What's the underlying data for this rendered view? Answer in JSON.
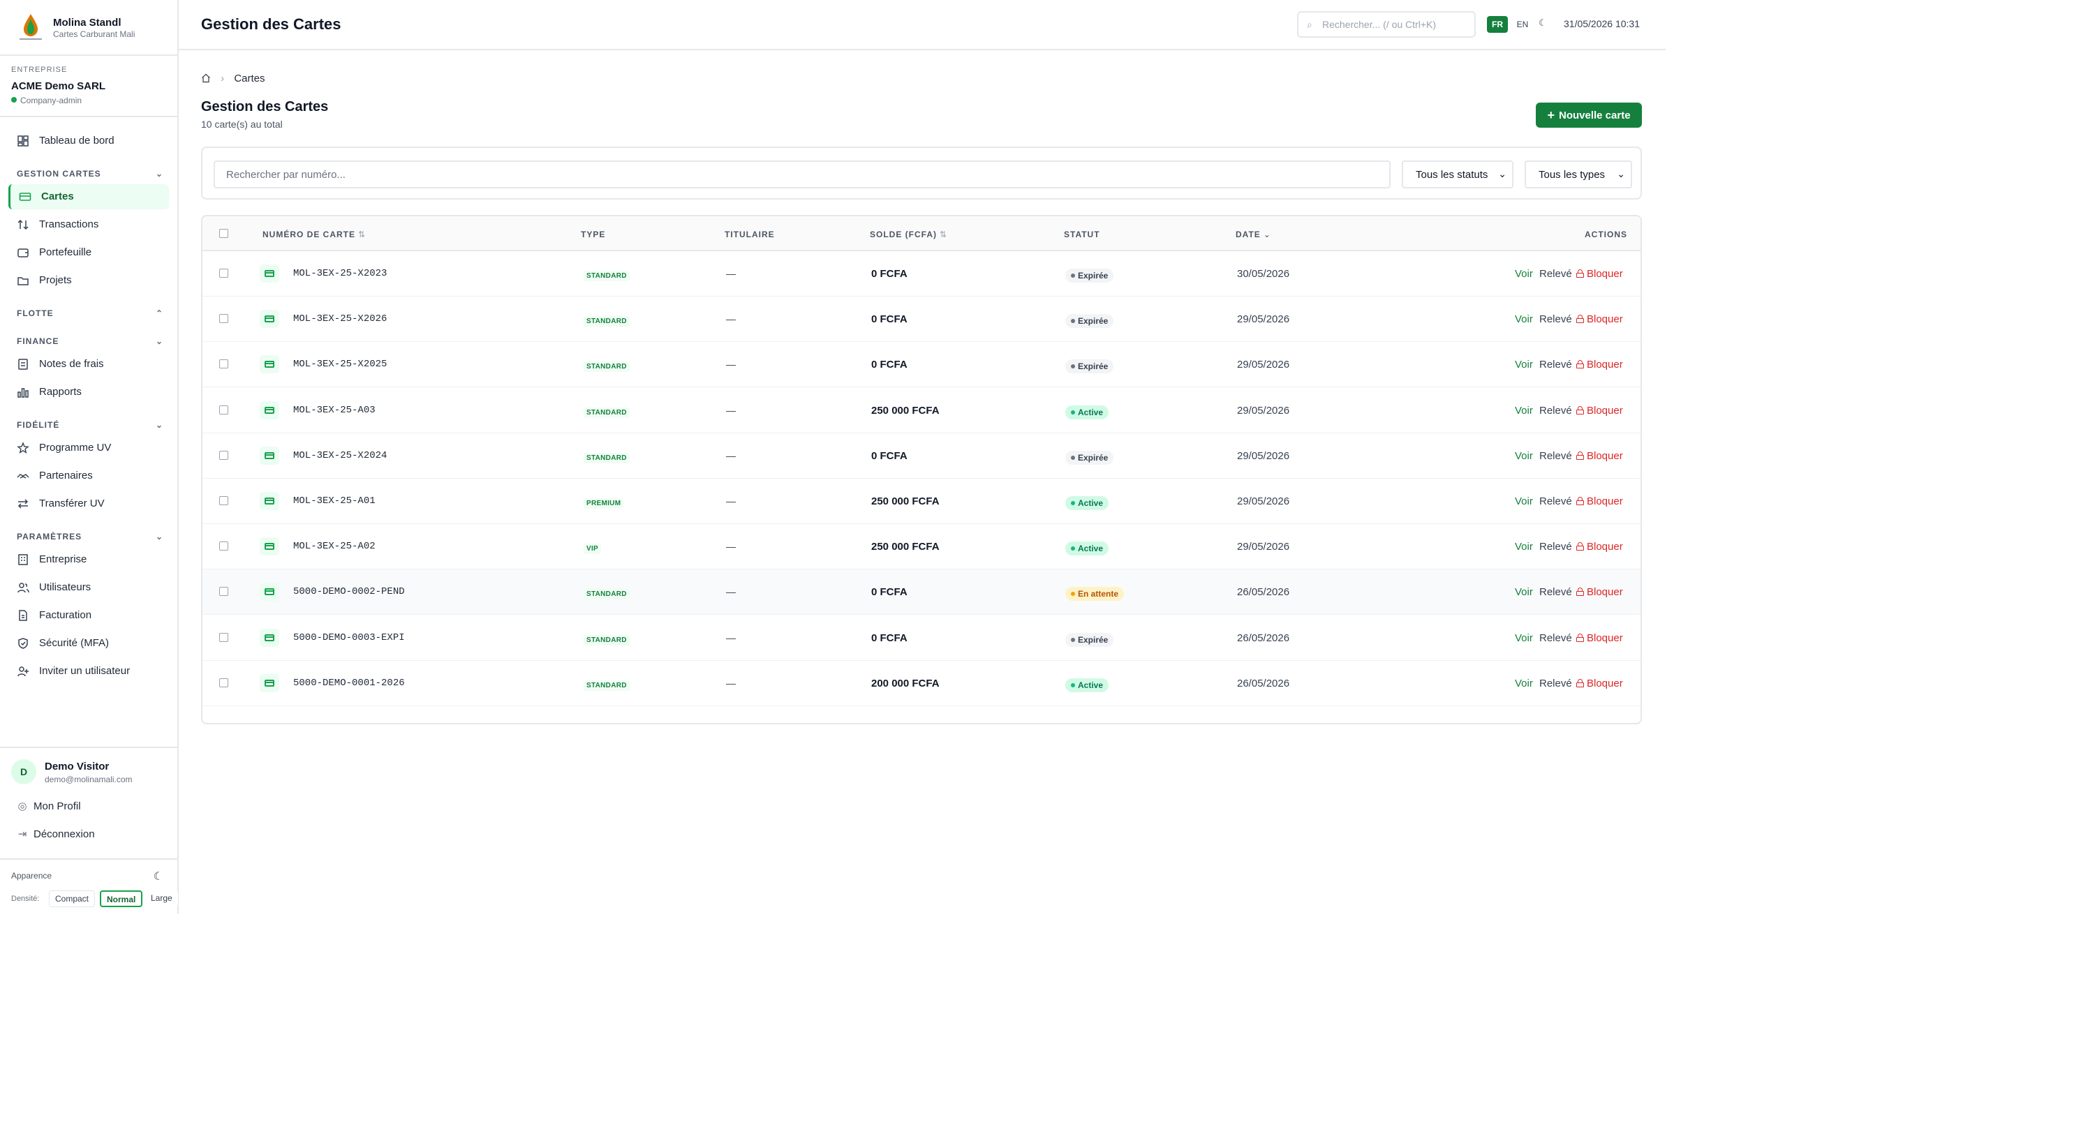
{
  "brand": {
    "name": "Molina Standl",
    "subtitle": "Cartes Carburant Mali"
  },
  "company": {
    "label": "Entreprise",
    "name": "ACME Demo SARL",
    "role": "Company-admin"
  },
  "nav": {
    "dashboard": "Tableau de bord",
    "sections": {
      "cards": "Gestion cartes",
      "fleet": "Flotte",
      "finance": "Finance",
      "loyalty": "Fidélité",
      "settings": "Paramètres"
    },
    "items": {
      "cartes": "Cartes",
      "transactions": "Transactions",
      "portefeuille": "Portefeuille",
      "projets": "Projets",
      "notes": "Notes de frais",
      "rapports": "Rapports",
      "programme": "Programme UV",
      "partenaires": "Partenaires",
      "transferer": "Transférer UV",
      "entreprise": "Entreprise",
      "utilisateurs": "Utilisateurs",
      "facturation": "Facturation",
      "securite": "Sécurité (MFA)",
      "inviter": "Inviter un utilisateur"
    }
  },
  "user": {
    "initial": "D",
    "name": "Demo Visitor",
    "email": "demo@molinamali.com",
    "profile": "Mon Profil",
    "logout": "Déconnexion"
  },
  "appearance": {
    "label": "Apparence",
    "density_label": "Densité:",
    "compact": "Compact",
    "normal": "Normal",
    "large": "Large"
  },
  "header": {
    "title": "Gestion des Cartes",
    "search_placeholder": "Rechercher... (/ ou Ctrl+K)",
    "lang_fr": "FR",
    "lang_en": "EN",
    "theme": "☾",
    "datetime": "31/05/2026 10:31"
  },
  "breadcrumb": {
    "current": "Cartes"
  },
  "main": {
    "title": "Gestion des Cartes",
    "count": "10 carte(s) au total",
    "new_button": "Nouvelle carte"
  },
  "filters": {
    "search_placeholder": "Rechercher par numéro...",
    "status_value": "Tous les statuts",
    "type_value": "Tous les types"
  },
  "table": {
    "columns": {
      "number": "Numéro de carte",
      "type": "Type",
      "holder": "Titulaire",
      "balance": "Solde (FCFA)",
      "status": "Statut",
      "date": "Date",
      "actions": "Actions"
    },
    "action_labels": {
      "view": "Voir",
      "statement": "Relevé",
      "block": "Bloquer"
    },
    "rows": [
      {
        "number": "MOL-3EX-25-X2023",
        "type": "STANDARD",
        "holder": "—",
        "balance": "0 FCFA",
        "status": "Expirée",
        "status_kind": "expired",
        "date": "30/05/2026"
      },
      {
        "number": "MOL-3EX-25-X2026",
        "type": "STANDARD",
        "holder": "—",
        "balance": "0 FCFA",
        "status": "Expirée",
        "status_kind": "expired",
        "date": "29/05/2026"
      },
      {
        "number": "MOL-3EX-25-X2025",
        "type": "STANDARD",
        "holder": "—",
        "balance": "0 FCFA",
        "status": "Expirée",
        "status_kind": "expired",
        "date": "29/05/2026"
      },
      {
        "number": "MOL-3EX-25-A03",
        "type": "STANDARD",
        "holder": "—",
        "balance": "250 000 FCFA",
        "status": "Active",
        "status_kind": "active",
        "date": "29/05/2026"
      },
      {
        "number": "MOL-3EX-25-X2024",
        "type": "STANDARD",
        "holder": "—",
        "balance": "0 FCFA",
        "status": "Expirée",
        "status_kind": "expired",
        "date": "29/05/2026"
      },
      {
        "number": "MOL-3EX-25-A01",
        "type": "PREMIUM",
        "holder": "—",
        "balance": "250 000 FCFA",
        "status": "Active",
        "status_kind": "active",
        "date": "29/05/2026"
      },
      {
        "number": "MOL-3EX-25-A02",
        "type": "VIP",
        "holder": "—",
        "balance": "250 000 FCFA",
        "status": "Active",
        "status_kind": "active",
        "date": "29/05/2026"
      },
      {
        "number": "5000-DEMO-0002-PEND",
        "type": "STANDARD",
        "holder": "—",
        "balance": "0 FCFA",
        "status": "En attente",
        "status_kind": "pending",
        "date": "26/05/2026"
      },
      {
        "number": "5000-DEMO-0003-EXPI",
        "type": "STANDARD",
        "holder": "—",
        "balance": "0 FCFA",
        "status": "Expirée",
        "status_kind": "expired",
        "date": "26/05/2026"
      },
      {
        "number": "5000-DEMO-0001-2026",
        "type": "STANDARD",
        "holder": "—",
        "balance": "200 000 FCFA",
        "status": "Active",
        "status_kind": "active",
        "date": "26/05/2026"
      }
    ]
  }
}
